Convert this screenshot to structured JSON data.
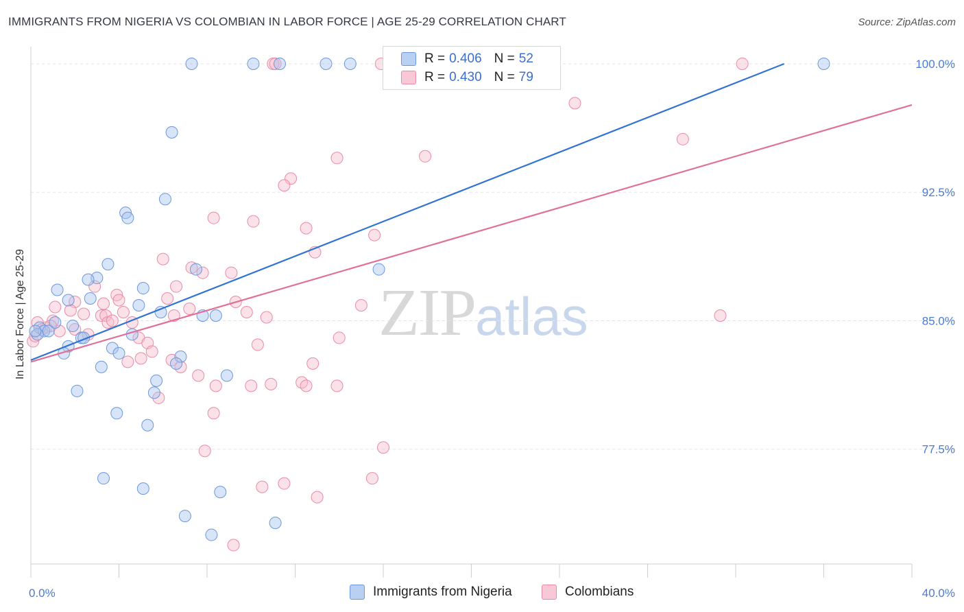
{
  "header": {
    "title": "IMMIGRANTS FROM NIGERIA VS COLOMBIAN IN LABOR FORCE | AGE 25-29 CORRELATION CHART",
    "source": "Source: ZipAtlas.com"
  },
  "watermark": {
    "zip": "ZIP",
    "atlas": "atlas"
  },
  "legend": {
    "r_label": "R =",
    "n_label": "N =",
    "series": [
      {
        "name": "Immigrants from Nigeria",
        "r": "0.406",
        "n": "52",
        "color": "#a9c4ee",
        "stroke": "#6b97dc"
      },
      {
        "name": "Colombians",
        "r": "0.430",
        "n": "79",
        "color": "#f7bccd",
        "stroke": "#e98aa6"
      }
    ]
  },
  "colors": {
    "blue_line": "#2f73d3",
    "pink_line": "#e0709a",
    "grid": "#e3e3e3",
    "tick_text": "#4a7bd0"
  },
  "chart_data": {
    "type": "scatter",
    "title": "IMMIGRANTS FROM NIGERIA VS COLOMBIAN IN LABOR FORCE | AGE 25-29 CORRELATION CHART",
    "xlabel": "",
    "ylabel": "In Labor Force | Age 25-29",
    "xlim": [
      0,
      40
    ],
    "ylim": [
      70.8,
      101.0
    ],
    "x_tick_labels": [
      "0.0%",
      "40.0%"
    ],
    "y_ticks": [
      77.5,
      85.0,
      92.5,
      100.0
    ],
    "y_tick_labels": [
      "77.5%",
      "85.0%",
      "92.5%",
      "100.0%"
    ],
    "grid": true,
    "legend_position": "top-center",
    "series": [
      {
        "name": "Immigrants from Nigeria",
        "trend": [
          [
            0.0,
            82.7
          ],
          [
            34.2,
            100.0
          ]
        ],
        "points": [
          [
            7.3,
            100.0
          ],
          [
            10.1,
            100.0
          ],
          [
            11.3,
            100.0
          ],
          [
            13.4,
            100.0
          ],
          [
            14.5,
            100.0
          ],
          [
            36.0,
            100.0
          ],
          [
            6.4,
            96.0
          ],
          [
            6.1,
            92.1
          ],
          [
            4.3,
            91.3
          ],
          [
            4.4,
            91.0
          ],
          [
            3.5,
            88.3
          ],
          [
            7.5,
            88.0
          ],
          [
            15.8,
            88.0
          ],
          [
            3.0,
            87.5
          ],
          [
            2.6,
            87.4
          ],
          [
            5.1,
            86.9
          ],
          [
            1.2,
            86.8
          ],
          [
            1.7,
            86.2
          ],
          [
            2.7,
            86.3
          ],
          [
            4.9,
            85.9
          ],
          [
            5.9,
            85.5
          ],
          [
            7.8,
            85.3
          ],
          [
            8.4,
            85.3
          ],
          [
            1.1,
            84.9
          ],
          [
            1.9,
            84.7
          ],
          [
            0.4,
            84.6
          ],
          [
            0.6,
            84.4
          ],
          [
            0.8,
            84.4
          ],
          [
            0.3,
            84.2
          ],
          [
            2.3,
            84.0
          ],
          [
            2.4,
            84.0
          ],
          [
            4.6,
            84.2
          ],
          [
            1.7,
            83.5
          ],
          [
            3.7,
            83.4
          ],
          [
            4.0,
            83.1
          ],
          [
            1.5,
            83.1
          ],
          [
            6.8,
            82.9
          ],
          [
            6.6,
            82.5
          ],
          [
            3.2,
            82.3
          ],
          [
            8.9,
            81.8
          ],
          [
            5.7,
            81.5
          ],
          [
            2.1,
            80.9
          ],
          [
            5.6,
            80.8
          ],
          [
            3.9,
            79.6
          ],
          [
            5.3,
            78.9
          ],
          [
            3.3,
            75.8
          ],
          [
            5.1,
            75.2
          ],
          [
            8.6,
            75.0
          ],
          [
            7.0,
            73.6
          ],
          [
            11.1,
            73.2
          ],
          [
            8.2,
            72.5
          ],
          [
            0.2,
            84.4
          ]
        ]
      },
      {
        "name": "Colombians",
        "trend": [
          [
            0.0,
            82.6
          ],
          [
            40.0,
            97.6
          ]
        ],
        "points": [
          [
            11.0,
            100.0
          ],
          [
            11.1,
            100.0
          ],
          [
            15.9,
            100.0
          ],
          [
            22.1,
            100.0
          ],
          [
            32.3,
            100.0
          ],
          [
            24.7,
            97.7
          ],
          [
            29.6,
            95.6
          ],
          [
            13.9,
            94.5
          ],
          [
            17.9,
            94.6
          ],
          [
            11.8,
            93.3
          ],
          [
            11.5,
            92.9
          ],
          [
            8.3,
            91.0
          ],
          [
            10.1,
            90.8
          ],
          [
            12.5,
            90.4
          ],
          [
            15.6,
            90.0
          ],
          [
            12.9,
            89.0
          ],
          [
            6.0,
            88.6
          ],
          [
            7.3,
            88.1
          ],
          [
            7.8,
            87.8
          ],
          [
            9.1,
            87.8
          ],
          [
            2.9,
            87.0
          ],
          [
            6.6,
            87.0
          ],
          [
            3.9,
            86.5
          ],
          [
            4.0,
            86.2
          ],
          [
            6.2,
            86.3
          ],
          [
            9.3,
            86.1
          ],
          [
            2.0,
            86.1
          ],
          [
            1.1,
            85.8
          ],
          [
            15.0,
            85.9
          ],
          [
            7.2,
            85.7
          ],
          [
            9.8,
            85.5
          ],
          [
            1.8,
            85.6
          ],
          [
            2.4,
            85.4
          ],
          [
            3.2,
            85.3
          ],
          [
            3.4,
            85.3
          ],
          [
            4.2,
            85.5
          ],
          [
            6.5,
            85.3
          ],
          [
            10.7,
            85.2
          ],
          [
            31.3,
            85.3
          ],
          [
            1.0,
            85.0
          ],
          [
            3.5,
            84.9
          ],
          [
            3.7,
            85.0
          ],
          [
            4.6,
            84.9
          ],
          [
            0.7,
            84.6
          ],
          [
            1.3,
            84.4
          ],
          [
            2.6,
            84.2
          ],
          [
            4.9,
            84.0
          ],
          [
            0.3,
            84.9
          ],
          [
            0.5,
            84.5
          ],
          [
            5.3,
            83.7
          ],
          [
            10.3,
            83.6
          ],
          [
            0.1,
            83.8
          ],
          [
            5.5,
            83.2
          ],
          [
            5.0,
            82.8
          ],
          [
            4.4,
            82.6
          ],
          [
            6.4,
            82.7
          ],
          [
            6.8,
            82.3
          ],
          [
            12.8,
            82.5
          ],
          [
            7.6,
            81.8
          ],
          [
            8.4,
            81.2
          ],
          [
            10.0,
            81.2
          ],
          [
            10.9,
            81.3
          ],
          [
            12.3,
            81.4
          ],
          [
            12.5,
            81.2
          ],
          [
            13.9,
            81.2
          ],
          [
            5.8,
            80.5
          ],
          [
            8.3,
            79.6
          ],
          [
            16.0,
            77.6
          ],
          [
            7.9,
            77.4
          ],
          [
            15.5,
            75.8
          ],
          [
            10.5,
            75.3
          ],
          [
            11.5,
            75.5
          ],
          [
            13.0,
            74.7
          ],
          [
            9.2,
            71.9
          ],
          [
            0.2,
            84.1
          ],
          [
            0.9,
            84.7
          ],
          [
            2.0,
            84.5
          ],
          [
            14.0,
            84.0
          ],
          [
            3.3,
            86.0
          ]
        ]
      }
    ]
  }
}
